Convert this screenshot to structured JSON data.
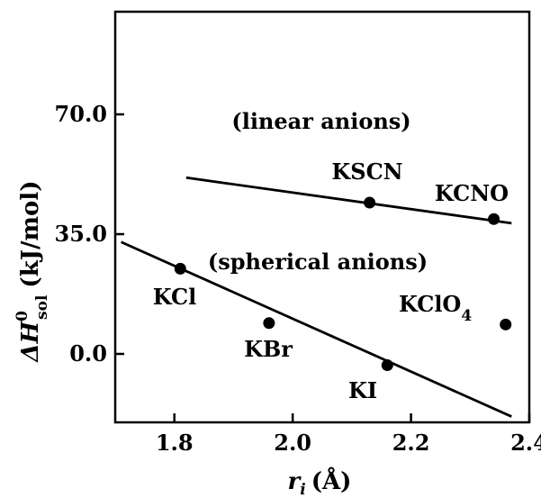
{
  "chart_data": {
    "type": "scatter",
    "title": "",
    "xlabel": {
      "var": "r",
      "sub": "i",
      "unit": "(Å)"
    },
    "ylabel": {
      "var": "ΔH",
      "sup": "0",
      "sub": "sol",
      "unit": "(kJ/mol)"
    },
    "xlim": [
      1.7,
      2.4
    ],
    "ylim": [
      -20,
      100
    ],
    "xticks": [
      {
        "value": 1.8,
        "label": "1.8"
      },
      {
        "value": 2.0,
        "label": "2.0"
      },
      {
        "value": 2.2,
        "label": "2.2"
      },
      {
        "value": 2.4,
        "label": "2.4"
      }
    ],
    "yticks": [
      {
        "value": 0.0,
        "label": "0.0"
      },
      {
        "value": 35.0,
        "label": "35.0"
      },
      {
        "value": 70.0,
        "label": "70.0"
      }
    ],
    "grid": false,
    "points": [
      {
        "name": "KCl",
        "x": 1.81,
        "y": 24.9
      },
      {
        "name": "KBr",
        "x": 1.96,
        "y": 9.0
      },
      {
        "name": "KI",
        "x": 2.16,
        "y": -3.3
      },
      {
        "name": "KSCN",
        "x": 2.13,
        "y": 44.2
      },
      {
        "name": "KCNO",
        "x": 2.34,
        "y": 39.4
      },
      {
        "name": "KClO",
        "sub": "4",
        "x": 2.36,
        "y": 8.6
      }
    ],
    "fit_lines": [
      {
        "group": "spherical anions",
        "x": [
          1.71,
          2.37
        ],
        "y": [
          32.7,
          -18.3
        ]
      },
      {
        "group": "linear anions",
        "x": [
          1.82,
          2.37
        ],
        "y": [
          51.5,
          38.2
        ]
      }
    ],
    "annotations": [
      "(linear anions)",
      "(spherical anions)"
    ]
  }
}
